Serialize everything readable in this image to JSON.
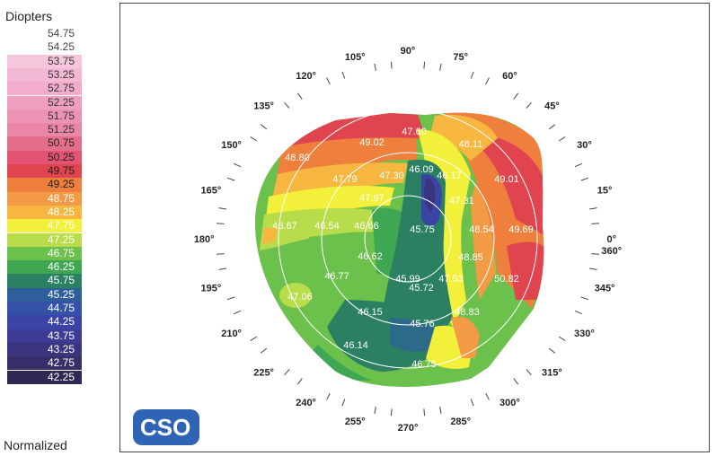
{
  "legend": {
    "title": "Diopters",
    "footer": "Normalized",
    "scale": [
      {
        "label": "54.75",
        "color": "#ffffff",
        "text": "#444444"
      },
      {
        "label": "54.25",
        "color": "#ffffff",
        "text": "#444444"
      },
      {
        "label": "53.75",
        "color": "#f5c6dc",
        "text": "#333333"
      },
      {
        "label": "53.25",
        "color": "#f3b9d4",
        "text": "#333333"
      },
      {
        "label": "52.75",
        "color": "#f1adcb",
        "text": "#333333"
      },
      {
        "label": "52.25",
        "color": "#ee9fc0",
        "text": "#333333"
      },
      {
        "label": "51.75",
        "color": "#ec93b5",
        "text": "#333333"
      },
      {
        "label": "51.25",
        "color": "#ea86a8",
        "text": "#333333"
      },
      {
        "label": "50.75",
        "color": "#e56e8c",
        "text": "#222222"
      },
      {
        "label": "50.25",
        "color": "#e25471",
        "text": "#222222"
      },
      {
        "label": "49.75",
        "color": "#e0454f",
        "text": "#222222"
      },
      {
        "label": "49.25",
        "color": "#ee7f3c",
        "text": "#222222"
      },
      {
        "label": "48.75",
        "color": "#f39a44",
        "text": "#ffffff"
      },
      {
        "label": "48.25",
        "color": "#f6b640",
        "text": "#ffffff"
      },
      {
        "label": "47.75",
        "color": "#f2f03a",
        "text": "#ffffff"
      },
      {
        "label": "47.25",
        "color": "#b8dc4a",
        "text": "#ffffff"
      },
      {
        "label": "46.75",
        "color": "#6cc04c",
        "text": "#ffffff"
      },
      {
        "label": "46.25",
        "color": "#3fa751",
        "text": "#ffffff"
      },
      {
        "label": "45.75",
        "color": "#2b8061",
        "text": "#ffffff"
      },
      {
        "label": "45.25",
        "color": "#2f5f9a",
        "text": "#ffffff"
      },
      {
        "label": "44.75",
        "color": "#3351a6",
        "text": "#ffffff"
      },
      {
        "label": "44.25",
        "color": "#3944a4",
        "text": "#ffffff"
      },
      {
        "label": "43.75",
        "color": "#3d3b96",
        "text": "#ffffff"
      },
      {
        "label": "43.25",
        "color": "#3b357f",
        "text": "#ffffff"
      },
      {
        "label": "42.75",
        "color": "#372f6a",
        "text": "#ffffff"
      },
      {
        "label": "42.25",
        "color": "#2e2a55",
        "text": "#ffffff"
      }
    ]
  },
  "axis": {
    "degrees": [
      "0°",
      "15°",
      "30°",
      "45°",
      "60°",
      "75°",
      "90°",
      "105°",
      "120°",
      "135°",
      "150°",
      "165°",
      "180°",
      "195°",
      "210°",
      "225°",
      "240°",
      "255°",
      "270°",
      "285°",
      "300°",
      "315°",
      "330°",
      "345°"
    ],
    "degree_extra": "360°"
  },
  "map": {
    "values": [
      {
        "text": "47.60"
      },
      {
        "text": "49.02"
      },
      {
        "text": "48.11"
      },
      {
        "text": "48.80"
      },
      {
        "text": "46.09"
      },
      {
        "text": "46.17"
      },
      {
        "text": "47.79"
      },
      {
        "text": "47.30"
      },
      {
        "text": "49.01"
      },
      {
        "text": "47.97"
      },
      {
        "text": "47.31"
      },
      {
        "text": "46.67"
      },
      {
        "text": "46.54"
      },
      {
        "text": "46.66"
      },
      {
        "text": "45.75"
      },
      {
        "text": "48.54"
      },
      {
        "text": "49.69"
      },
      {
        "text": "46.62"
      },
      {
        "text": "48.85"
      },
      {
        "text": "46.77"
      },
      {
        "text": "45.99"
      },
      {
        "text": "47.53"
      },
      {
        "text": "50.82"
      },
      {
        "text": "47.06"
      },
      {
        "text": "45.72"
      },
      {
        "text": "46.15"
      },
      {
        "text": "48.83"
      },
      {
        "text": "45.76"
      },
      {
        "text": "46.14"
      },
      {
        "text": "46.75"
      }
    ]
  },
  "logo": {
    "text": "CSO"
  }
}
